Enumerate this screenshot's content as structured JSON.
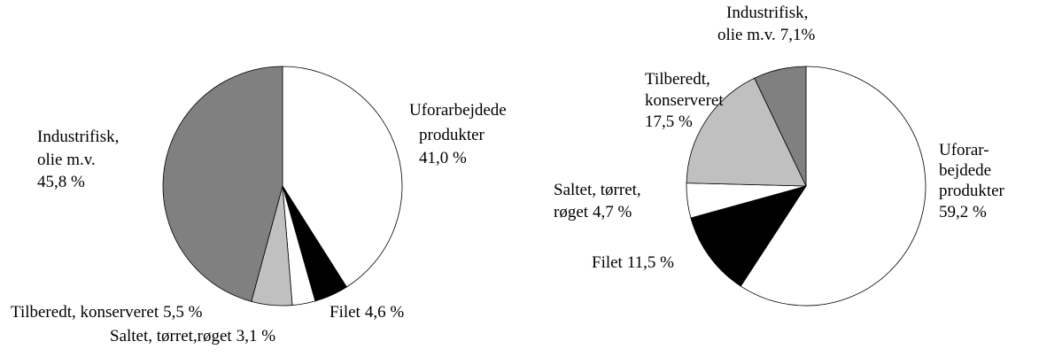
{
  "chart_data": [
    {
      "type": "pie",
      "categories": [
        "Uforarbejdede\nprodukter",
        "Filet",
        "Saltet, tørret,røget",
        "Tilberedt, konserveret",
        "Industrifisk,\nolie m.v."
      ],
      "values": [
        41.0,
        4.6,
        3.1,
        5.5,
        45.8
      ],
      "value_labels": [
        "41,0 %",
        "4,6 %",
        "3,1 %",
        "5,5 %",
        "45,8 %"
      ],
      "colors": [
        "#ffffff",
        "#000000",
        "#ffffff",
        "#c0c0c0",
        "#808080"
      ]
    },
    {
      "type": "pie",
      "categories": [
        "Uforar-\nbejdede\nprodukter",
        "Filet",
        "Saltet, tørret,\nrøget",
        "Tilberedt,\nkonserveret",
        "Industrifisk,\nolie m.v."
      ],
      "values": [
        59.2,
        11.5,
        4.7,
        17.5,
        7.1
      ],
      "value_labels": [
        "59,2 %",
        "11,5 %",
        "4,7 %",
        "17,5 %",
        "7,1%"
      ],
      "colors": [
        "#ffffff",
        "#000000",
        "#ffffff",
        "#c0c0c0",
        "#808080"
      ]
    }
  ]
}
